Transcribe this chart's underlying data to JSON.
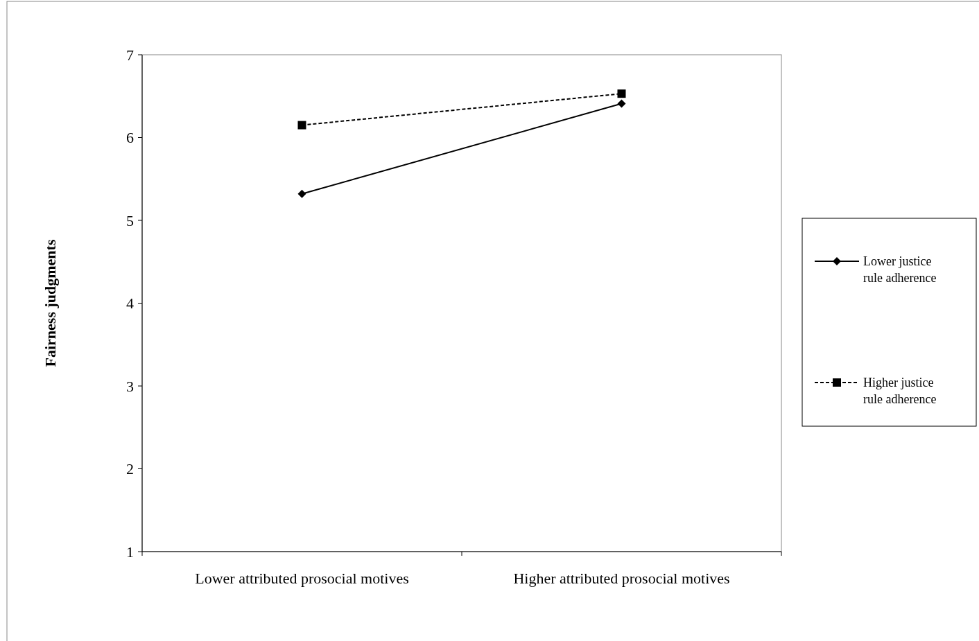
{
  "chart_data": {
    "type": "line",
    "ylabel": "Fairness judgments",
    "categories": [
      "Lower attributed prosocial motives",
      "Higher attributed prosocial motives"
    ],
    "ylim": [
      1,
      7
    ],
    "yticks": [
      1,
      2,
      3,
      4,
      5,
      6,
      7
    ],
    "legend": "right",
    "grid": false,
    "series": [
      {
        "name": "Lower justice rule adherence",
        "color": "#000000",
        "marker": "diamond",
        "line_style": "solid",
        "values": [
          5.32,
          6.41
        ]
      },
      {
        "name": "Higher justice rule adherence",
        "color": "#000000",
        "marker": "square",
        "line_style": "dashed",
        "values": [
          6.15,
          6.53
        ]
      }
    ]
  }
}
